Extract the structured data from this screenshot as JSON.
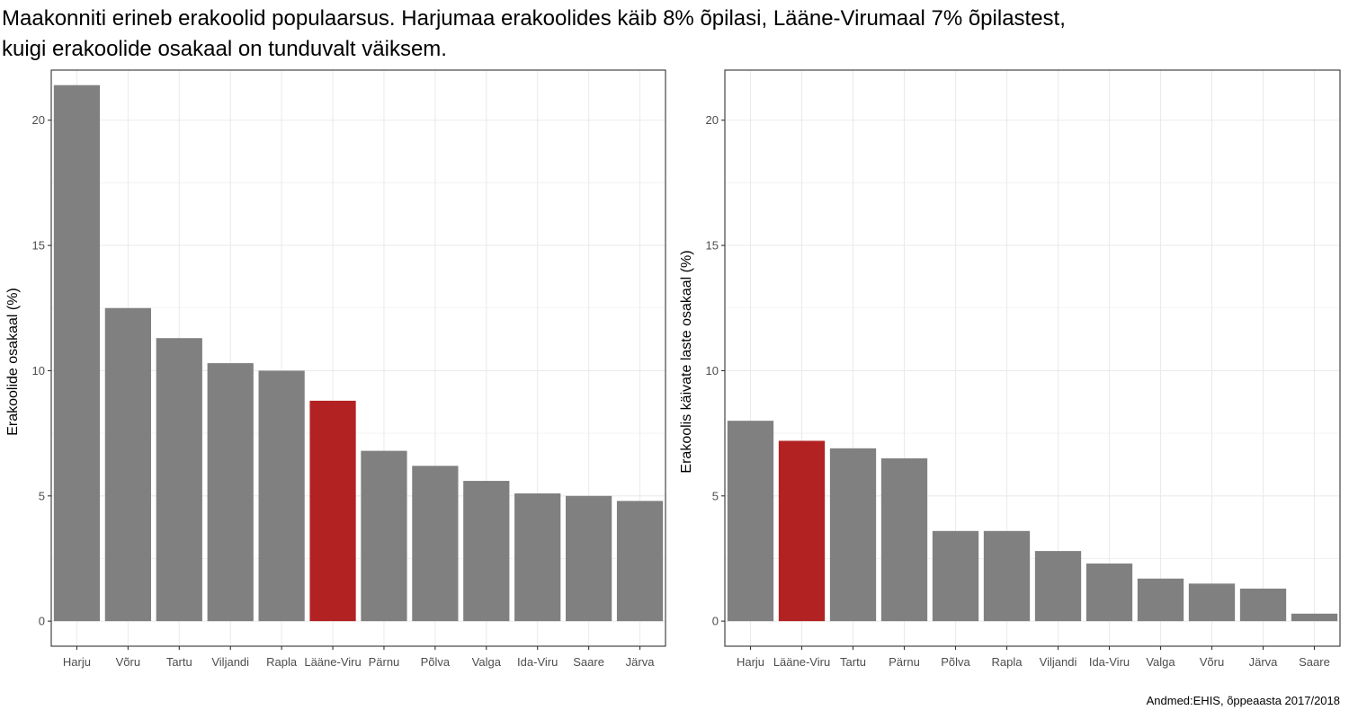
{
  "title_lines": [
    "Maakonniti erineb erakoolid populaarsus. Harjumaa erakoolides käib 8% õpilasi, Lääne-Virumaal 7% õpilastest,",
    "kuigi erakoolide osakaal on tunduvalt väiksem."
  ],
  "caption": "Andmed:EHIS, õppeaasta 2017/2018",
  "colors": {
    "bar": "#808080",
    "highlight": "#b22222",
    "grid": "#ebebeb",
    "axis": "#333333"
  },
  "chart_data": [
    {
      "type": "bar",
      "title": "",
      "xlabel": "",
      "ylabel": "Erakoolide osakaal (%)",
      "categories": [
        "Harju",
        "Võru",
        "Tartu",
        "Viljandi",
        "Rapla",
        "Lääne-Viru",
        "Pärnu",
        "Põlva",
        "Valga",
        "Ida-Viru",
        "Saare",
        "Järva"
      ],
      "values": [
        21.4,
        12.5,
        11.3,
        10.3,
        10.0,
        8.8,
        6.8,
        6.2,
        5.6,
        5.1,
        5.0,
        4.8
      ],
      "highlight": "Lääne-Viru",
      "ylim": [
        -1,
        22
      ],
      "yticks": [
        0,
        5,
        10,
        15,
        20
      ],
      "grid": true
    },
    {
      "type": "bar",
      "title": "",
      "xlabel": "",
      "ylabel": "Erakoolis käivate laste osakaal (%)",
      "categories": [
        "Harju",
        "Lääne-Viru",
        "Tartu",
        "Pärnu",
        "Põlva",
        "Rapla",
        "Viljandi",
        "Ida-Viru",
        "Valga",
        "Võru",
        "Järva",
        "Saare"
      ],
      "values": [
        8.0,
        7.2,
        6.9,
        6.5,
        3.6,
        3.6,
        2.8,
        2.3,
        1.7,
        1.5,
        1.3,
        0.3
      ],
      "highlight": "Lääne-Viru",
      "ylim": [
        -1,
        22
      ],
      "yticks": [
        0,
        5,
        10,
        15,
        20
      ],
      "grid": true
    }
  ]
}
